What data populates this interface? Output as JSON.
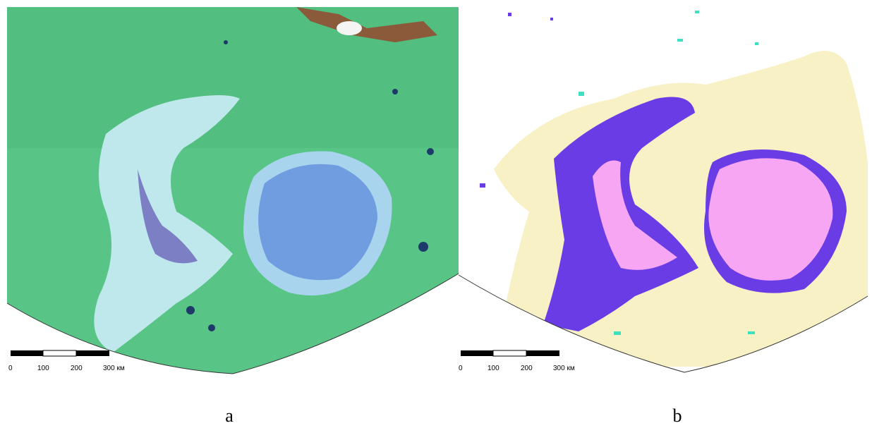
{
  "panels": [
    {
      "caption": "a",
      "scale_labels": [
        "0",
        "100",
        "200",
        "300 км"
      ]
    },
    {
      "caption": "b",
      "scale_labels": [
        "0",
        "100",
        "200",
        "300 км"
      ]
    }
  ]
}
